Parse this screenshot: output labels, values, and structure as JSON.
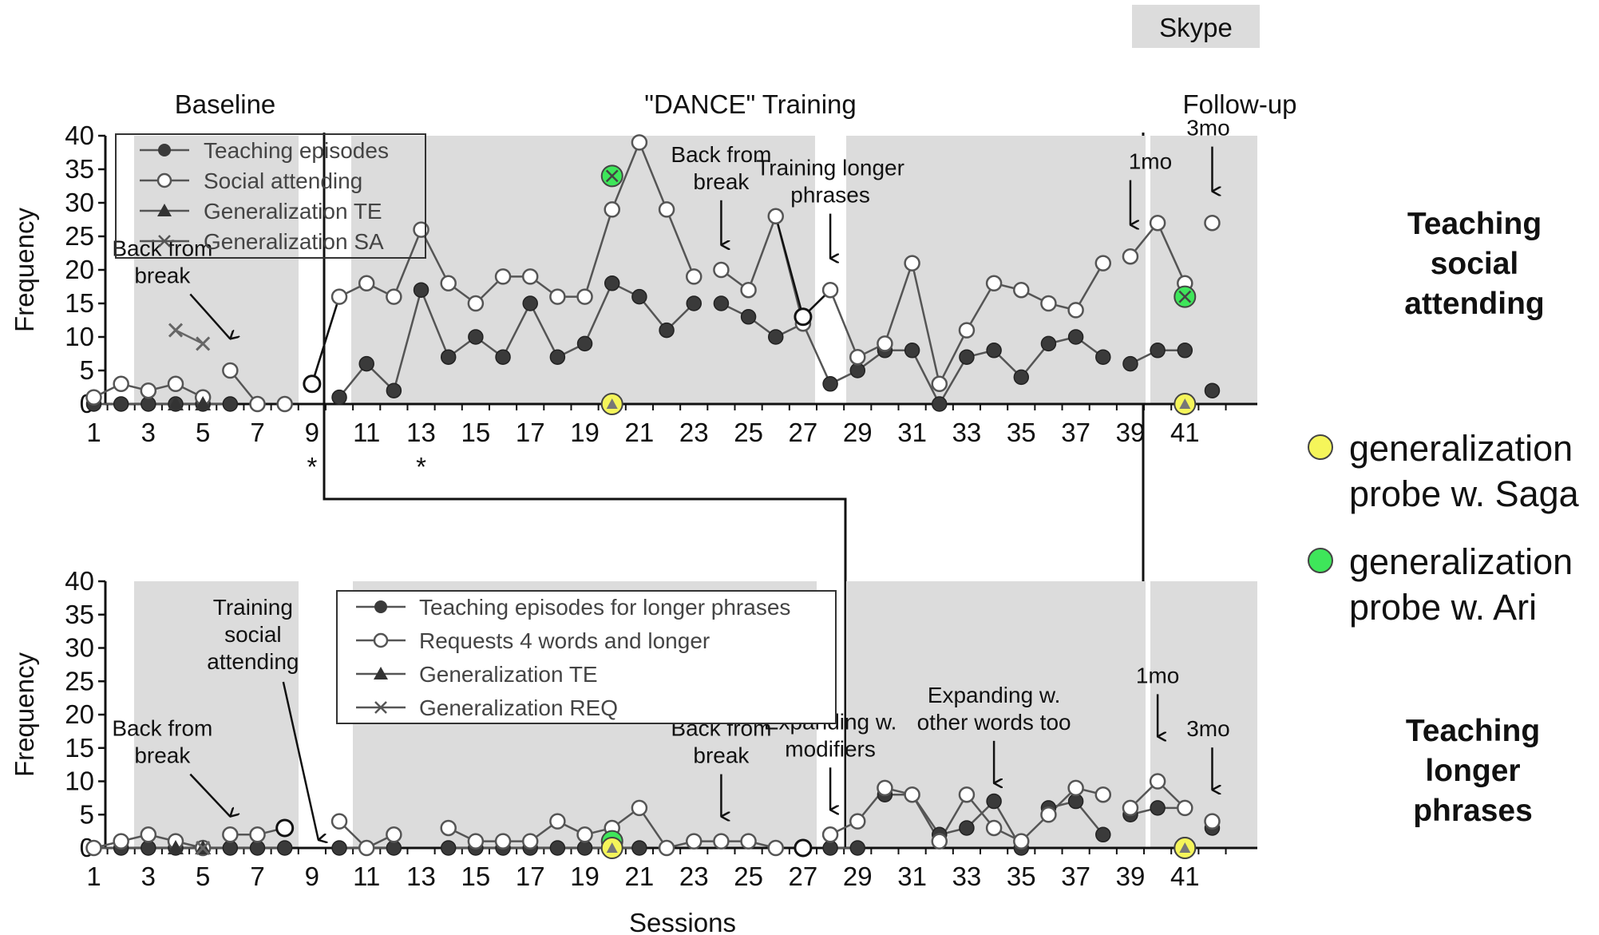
{
  "skype_label": "Skype",
  "phase_labels": {
    "baseline": "Baseline",
    "training": "\"DANCE\" Training",
    "followup": "Follow-up"
  },
  "side_titles": {
    "top": [
      "Teaching",
      "social",
      "attending"
    ],
    "bottom": [
      "Teaching",
      "longer",
      "phrases"
    ]
  },
  "side_legend": {
    "saga": [
      "generalization",
      "probe w. Saga"
    ],
    "ari": [
      "generalization",
      "probe w. Ari"
    ],
    "saga_color": "#f5f55a",
    "ari_color": "#3ee65a"
  },
  "colors": {
    "phase_shade": "#dcdcdc",
    "series_line": "#555555",
    "skype_bg": "#dcdcdc"
  },
  "chart_data": [
    {
      "type": "line",
      "ylabel": "Frequency",
      "xlabel": "",
      "ylim": [
        0,
        40
      ],
      "yticks": [
        0,
        5,
        10,
        15,
        20,
        25,
        30,
        35,
        40
      ],
      "xlim": [
        1,
        42
      ],
      "xticks": [
        1,
        3,
        5,
        7,
        9,
        11,
        13,
        15,
        17,
        19,
        21,
        23,
        25,
        27,
        29,
        31,
        33,
        35,
        37,
        39,
        41
      ],
      "starred_sessions": [
        9,
        13
      ],
      "star_label": "*",
      "legend": [
        "Teaching episodes",
        "Social attending",
        "Generalization TE",
        "Generalization SA"
      ],
      "series": [
        {
          "name": "Teaching episodes",
          "segments": [
            [
              [
                1,
                0
              ],
              [
                2,
                0
              ],
              [
                3,
                0
              ],
              [
                4,
                0
              ],
              [
                5,
                0
              ],
              [
                6,
                0
              ]
            ],
            [
              [
                9,
                null
              ],
              [
                10,
                1
              ],
              [
                11,
                6
              ],
              [
                12,
                2
              ],
              [
                13,
                17
              ],
              [
                14,
                7
              ],
              [
                15,
                10
              ],
              [
                16,
                7
              ],
              [
                17,
                15
              ],
              [
                18,
                7
              ],
              [
                19,
                9
              ],
              [
                20,
                18
              ],
              [
                21,
                16
              ],
              [
                22,
                11
              ],
              [
                23,
                15
              ]
            ],
            [
              [
                24,
                15
              ],
              [
                25,
                13
              ],
              [
                26,
                10
              ],
              [
                27,
                12
              ]
            ],
            [
              [
                27,
                12
              ],
              [
                28,
                3
              ],
              [
                29,
                5
              ],
              [
                30,
                8
              ],
              [
                31,
                8
              ],
              [
                32,
                0
              ],
              [
                33,
                7
              ],
              [
                34,
                8
              ],
              [
                35,
                4
              ],
              [
                36,
                9
              ],
              [
                37,
                10
              ],
              [
                38,
                7
              ]
            ],
            [
              [
                39,
                6
              ],
              [
                40,
                8
              ],
              [
                41,
                8
              ]
            ],
            [
              [
                42,
                2
              ]
            ]
          ]
        },
        {
          "name": "Social attending",
          "segments": [
            [
              [
                1,
                1
              ],
              [
                2,
                3
              ],
              [
                3,
                2
              ],
              [
                4,
                3
              ],
              [
                5,
                1
              ]
            ],
            [
              [
                6,
                5
              ],
              [
                7,
                0
              ]
            ],
            [
              [
                8,
                0
              ]
            ],
            [
              [
                9,
                3
              ],
              [
                10,
                16
              ],
              [
                11,
                18
              ],
              [
                12,
                16
              ],
              [
                13,
                26
              ],
              [
                14,
                18
              ],
              [
                15,
                15
              ],
              [
                16,
                19
              ],
              [
                17,
                19
              ],
              [
                18,
                16
              ],
              [
                19,
                16
              ],
              [
                20,
                29
              ],
              [
                21,
                39
              ],
              [
                22,
                29
              ],
              [
                23,
                19
              ]
            ],
            [
              [
                24,
                20
              ],
              [
                25,
                17
              ],
              [
                26,
                28
              ],
              [
                27,
                12
              ]
            ],
            [
              [
                27,
                13
              ],
              [
                28,
                17
              ],
              [
                29,
                7
              ],
              [
                30,
                9
              ],
              [
                31,
                21
              ],
              [
                32,
                3
              ],
              [
                33,
                11
              ],
              [
                34,
                18
              ],
              [
                35,
                17
              ],
              [
                36,
                15
              ],
              [
                37,
                14
              ],
              [
                38,
                21
              ]
            ],
            [
              [
                39,
                22
              ],
              [
                40,
                27
              ],
              [
                41,
                18
              ]
            ],
            [
              [
                42,
                27
              ]
            ]
          ],
          "highlight_points": [
            [
              9,
              3
            ],
            [
              27,
              13
            ]
          ]
        },
        {
          "name": "Generalization TE",
          "points": [
            [
              4,
              0
            ],
            [
              5,
              0
            ],
            [
              20,
              0
            ],
            [
              41,
              0
            ]
          ]
        },
        {
          "name": "Generalization SA",
          "points": [
            [
              4,
              11
            ],
            [
              5,
              9
            ]
          ]
        }
      ],
      "probes": [
        {
          "who": "Saga",
          "session": 20,
          "value": 0
        },
        {
          "who": "Ari",
          "session": 20,
          "value": 34
        },
        {
          "who": "Saga",
          "session": 41,
          "value": 0
        },
        {
          "who": "Ari",
          "session": 41,
          "value": 16
        }
      ],
      "annotations": [
        {
          "lines": [
            "Back from",
            "break"
          ],
          "session": 6,
          "value": 9
        },
        {
          "lines": [
            "Back from",
            "break"
          ],
          "session": 24,
          "value": 23
        },
        {
          "lines": [
            "Training longer",
            "phrases"
          ],
          "session": 28,
          "value": 21
        },
        {
          "lines": [
            "1mo"
          ],
          "session": 39,
          "value": 26
        },
        {
          "lines": [
            "3mo"
          ],
          "session": 42,
          "value": 31
        }
      ]
    },
    {
      "type": "line",
      "ylabel": "Frequency",
      "xlabel": "Sessions",
      "ylim": [
        0,
        40
      ],
      "yticks": [
        0,
        5,
        10,
        15,
        20,
        25,
        30,
        35,
        40
      ],
      "xlim": [
        1,
        42
      ],
      "xticks": [
        1,
        3,
        5,
        7,
        9,
        11,
        13,
        15,
        17,
        19,
        21,
        23,
        25,
        27,
        29,
        31,
        33,
        35,
        37,
        39,
        41
      ],
      "legend": [
        "Teaching episodes for longer phrases",
        "Requests 4 words and longer",
        "Generalization TE",
        "Generalization REQ"
      ],
      "series": [
        {
          "name": "Teaching episodes for longer phrases",
          "segments": [
            [
              [
                1,
                0
              ],
              [
                2,
                0
              ],
              [
                3,
                0
              ],
              [
                4,
                0
              ],
              [
                5,
                0
              ],
              [
                6,
                0
              ],
              [
                7,
                0
              ],
              [
                8,
                0
              ]
            ],
            [
              [
                10,
                0
              ],
              [
                12,
                0
              ]
            ],
            [
              [
                14,
                0
              ],
              [
                15,
                0
              ],
              [
                16,
                0
              ],
              [
                17,
                0
              ],
              [
                18,
                0
              ],
              [
                19,
                0
              ],
              [
                20,
                0
              ],
              [
                21,
                0
              ]
            ],
            [
              [
                28,
                0
              ],
              [
                29,
                0
              ]
            ],
            [
              [
                30,
                8
              ],
              [
                31,
                8
              ],
              [
                32,
                2
              ],
              [
                33,
                3
              ],
              [
                34,
                7
              ],
              [
                35,
                0
              ]
            ],
            [
              [
                36,
                6
              ],
              [
                37,
                7
              ],
              [
                38,
                2
              ]
            ],
            [
              [
                39,
                5
              ],
              [
                40,
                6
              ],
              [
                41,
                6
              ]
            ],
            [
              [
                42,
                3
              ]
            ]
          ]
        },
        {
          "name": "Requests 4 words and longer",
          "segments": [
            [
              [
                1,
                0
              ],
              [
                2,
                1
              ],
              [
                3,
                2
              ],
              [
                4,
                1
              ],
              [
                5,
                0
              ]
            ],
            [
              [
                6,
                2
              ],
              [
                7,
                2
              ],
              [
                8,
                3
              ]
            ],
            [
              [
                10,
                4
              ],
              [
                11,
                0
              ],
              [
                12,
                2
              ]
            ],
            [
              [
                14,
                3
              ],
              [
                15,
                1
              ],
              [
                16,
                1
              ],
              [
                17,
                1
              ],
              [
                18,
                4
              ],
              [
                19,
                2
              ],
              [
                20,
                3
              ],
              [
                21,
                6
              ],
              [
                22,
                0
              ],
              [
                23,
                1
              ],
              [
                24,
                1
              ],
              [
                25,
                1
              ],
              [
                26,
                0
              ]
            ],
            [
              [
                27,
                0
              ]
            ],
            [
              [
                28,
                2
              ],
              [
                29,
                4
              ],
              [
                30,
                9
              ],
              [
                31,
                8
              ],
              [
                32,
                1
              ],
              [
                33,
                8
              ],
              [
                34,
                3
              ],
              [
                35,
                1
              ],
              [
                36,
                5
              ],
              [
                37,
                9
              ],
              [
                38,
                8
              ]
            ],
            [
              [
                39,
                6
              ],
              [
                40,
                10
              ],
              [
                41,
                6
              ]
            ],
            [
              [
                42,
                4
              ]
            ]
          ],
          "highlight_points": [
            [
              8,
              3
            ],
            [
              27,
              0
            ]
          ]
        },
        {
          "name": "Generalization TE",
          "points": [
            [
              4,
              0
            ],
            [
              5,
              0
            ],
            [
              20,
              0
            ],
            [
              41,
              0
            ]
          ]
        },
        {
          "name": "Generalization REQ",
          "points": [
            [
              5,
              0
            ]
          ]
        }
      ],
      "probes": [
        {
          "who": "Ari",
          "session": 20,
          "value": 1
        },
        {
          "who": "Saga",
          "session": 20,
          "value": 0
        },
        {
          "who": "Ari",
          "session": 41,
          "value": 0
        },
        {
          "who": "Saga",
          "session": 41,
          "value": 0
        }
      ],
      "annotations": [
        {
          "lines": [
            "Back from",
            "break"
          ],
          "session": 6,
          "value": 4
        },
        {
          "lines": [
            "Training",
            "social",
            "attending"
          ],
          "session": 9,
          "value": 0
        },
        {
          "lines": [
            "Back from",
            "break"
          ],
          "session": 24,
          "value": 4
        },
        {
          "lines": [
            "Expanding w.",
            "modifiers"
          ],
          "session": 28,
          "value": 5
        },
        {
          "lines": [
            "Expanding w.",
            "other words too"
          ],
          "session": 34,
          "value": 9
        },
        {
          "lines": [
            "1mo"
          ],
          "session": 40,
          "value": 16
        },
        {
          "lines": [
            "3mo"
          ],
          "session": 42,
          "value": 8
        }
      ]
    }
  ]
}
